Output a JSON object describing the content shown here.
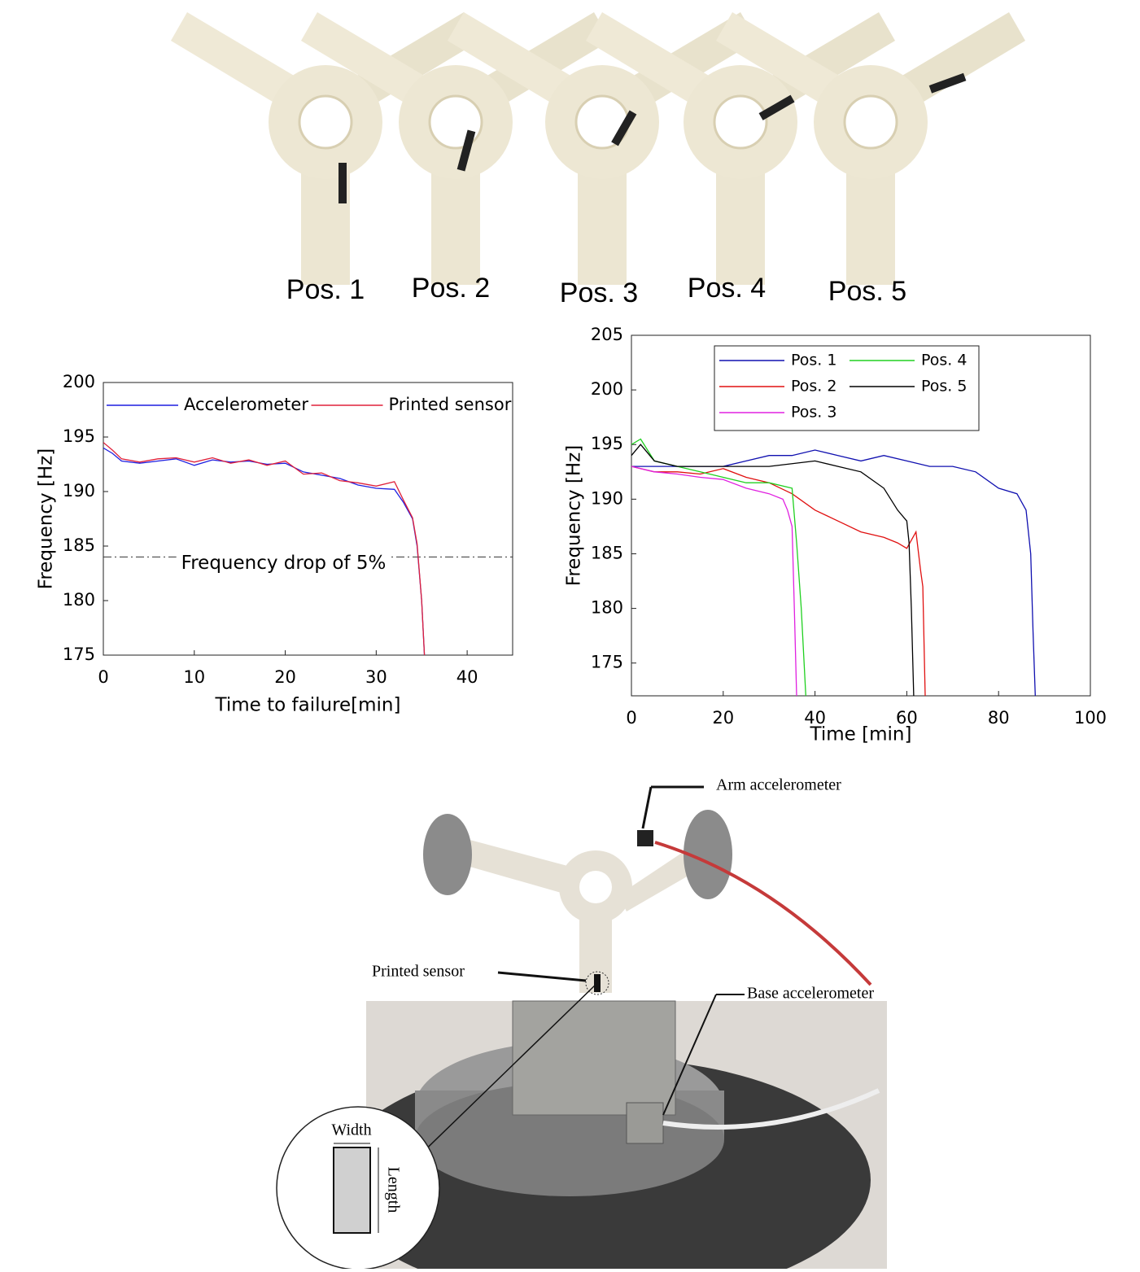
{
  "photos": {
    "positions": [
      "Pos. 1",
      "Pos. 2",
      "Pos. 3",
      "Pos. 4",
      "Pos. 5"
    ],
    "callouts": {
      "arm": "Arm accelerometer",
      "sensor": "Printed sensor",
      "base": "Base accelerometer",
      "width": "Width",
      "length": "Length"
    }
  },
  "chart_data": [
    {
      "type": "line",
      "xlabel": "Time to failure[min]",
      "ylabel": "Frequency [Hz]",
      "x": [
        0,
        1,
        2,
        4,
        6,
        8,
        10,
        12,
        14,
        16,
        18,
        20,
        22,
        24,
        26,
        28,
        30,
        32,
        33,
        34,
        34.5,
        35,
        35.3
      ],
      "series": [
        {
          "name": "Accelerometer",
          "color": "#1f1fe0",
          "values": [
            194,
            193.5,
            192.8,
            192.6,
            192.8,
            193,
            192.4,
            192.9,
            192.7,
            192.8,
            192.5,
            192.6,
            191.8,
            191.5,
            191.2,
            190.6,
            190.3,
            190.2,
            189,
            187.5,
            185,
            180,
            175
          ]
        },
        {
          "name": "Printed sensor",
          "color": "#e0203a",
          "values": [
            194.5,
            193.8,
            193,
            192.7,
            193,
            193.1,
            192.7,
            193.1,
            192.6,
            192.9,
            192.4,
            192.8,
            191.6,
            191.7,
            191,
            190.8,
            190.5,
            190.9,
            189.2,
            187.6,
            185.2,
            180,
            175
          ]
        }
      ],
      "reference_line": 184,
      "annotation": "Frequency drop of 5%",
      "xlim": [
        0,
        45
      ],
      "ylim": [
        175,
        200
      ],
      "xticks": [
        0,
        10,
        20,
        30,
        40
      ],
      "yticks": [
        175,
        180,
        185,
        190,
        195,
        200
      ],
      "legend": "top"
    },
    {
      "type": "line",
      "xlabel": "Time [min]",
      "ylabel": "Frequency [Hz]",
      "series": [
        {
          "name": "Pos. 1",
          "color": "#1010b0",
          "x": [
            0,
            5,
            10,
            15,
            20,
            25,
            30,
            35,
            40,
            45,
            50,
            55,
            60,
            65,
            70,
            75,
            80,
            84,
            86,
            87,
            87.5,
            88
          ],
          "values": [
            193,
            193,
            193,
            193,
            193,
            193.5,
            194,
            194,
            194.5,
            194,
            193.5,
            194,
            193.5,
            193,
            193,
            192.5,
            191,
            190.5,
            189,
            185,
            178,
            172
          ]
        },
        {
          "name": "Pos. 2",
          "color": "#e01010",
          "x": [
            0,
            5,
            10,
            15,
            20,
            25,
            30,
            35,
            40,
            45,
            50,
            55,
            58,
            60,
            62,
            63,
            63.5,
            64
          ],
          "values": [
            193,
            192.5,
            192.5,
            192.3,
            192.8,
            192,
            191.5,
            190.5,
            189,
            188,
            187,
            186.5,
            186,
            185.5,
            187,
            183.5,
            182,
            172
          ]
        },
        {
          "name": "Pos. 3",
          "color": "#e020e0",
          "x": [
            0,
            5,
            10,
            15,
            20,
            25,
            30,
            33,
            34,
            35,
            35.5,
            36
          ],
          "values": [
            193,
            192.5,
            192.3,
            192,
            191.8,
            191,
            190.5,
            190,
            189,
            187.5,
            180,
            172
          ]
        },
        {
          "name": "Pos. 4",
          "color": "#20d020",
          "x": [
            0,
            2,
            5,
            10,
            15,
            20,
            25,
            30,
            35,
            36,
            37,
            38
          ],
          "values": [
            195,
            195.5,
            193.5,
            193,
            192.5,
            192,
            191.5,
            191.5,
            191,
            186,
            180,
            172
          ]
        },
        {
          "name": "Pos. 5",
          "color": "#000000",
          "x": [
            0,
            2,
            5,
            10,
            20,
            30,
            40,
            45,
            50,
            55,
            58,
            60,
            60.5,
            61,
            61.5
          ],
          "values": [
            194,
            195,
            193.5,
            193,
            193,
            193,
            193.5,
            193,
            192.5,
            191,
            189,
            188,
            186,
            180,
            172
          ]
        }
      ],
      "xlim": [
        0,
        100
      ],
      "ylim": [
        172,
        205
      ],
      "xticks": [
        0,
        20,
        40,
        60,
        80,
        100
      ],
      "yticks": [
        175,
        180,
        185,
        190,
        195,
        200,
        205
      ],
      "legend": "upper-center"
    }
  ]
}
